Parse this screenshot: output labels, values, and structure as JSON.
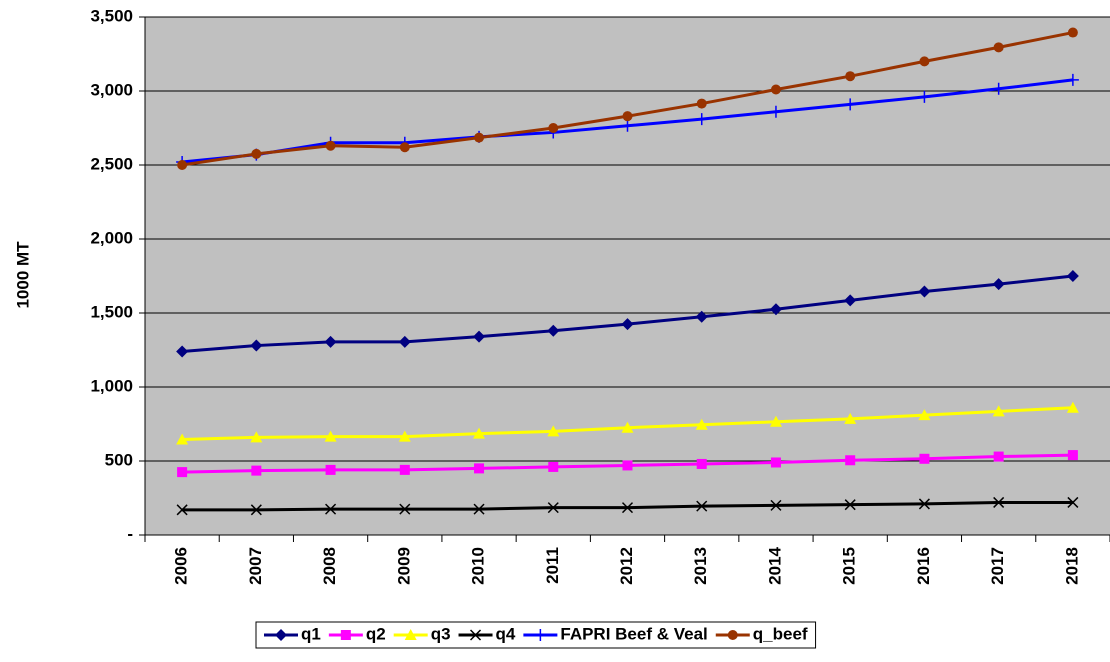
{
  "chart_data": {
    "type": "line",
    "y_label": "1000 MT",
    "categories": [
      "2006",
      "2007",
      "2008",
      "2009",
      "2010",
      "2011",
      "2012",
      "2013",
      "2014",
      "2015",
      "2016",
      "2017",
      "2018"
    ],
    "ylim": [
      0,
      3500
    ],
    "yticks": [
      {
        "value": 0,
        "label": "-"
      },
      500,
      {
        "value": 1000,
        "label": "1,000"
      },
      {
        "value": 1500,
        "label": "1,500"
      },
      {
        "value": 2000,
        "label": "2,000"
      },
      {
        "value": 2500,
        "label": "2,500"
      },
      {
        "value": 3000,
        "label": "3,000"
      },
      {
        "value": 3500,
        "label": "3,500"
      }
    ],
    "grid": true,
    "background": "#c0c0c0",
    "legend": "bottom",
    "series": [
      {
        "name": "q1",
        "color": "#000080",
        "marker": "diamond",
        "values": [
          1240,
          1280,
          1305,
          1305,
          1340,
          1380,
          1425,
          1475,
          1525,
          1585,
          1645,
          1695,
          1750
        ]
      },
      {
        "name": "q2",
        "color": "#ff00ff",
        "marker": "square",
        "values": [
          425,
          435,
          440,
          440,
          450,
          460,
          470,
          480,
          490,
          505,
          515,
          530,
          540
        ]
      },
      {
        "name": "q3",
        "color": "#ffff00",
        "marker": "triangle",
        "values": [
          645,
          660,
          665,
          665,
          685,
          700,
          725,
          745,
          765,
          785,
          810,
          835,
          860
        ]
      },
      {
        "name": "q4",
        "color": "#000000",
        "marker": "x",
        "values": [
          170,
          170,
          175,
          175,
          175,
          185,
          185,
          195,
          200,
          205,
          210,
          220,
          220
        ]
      },
      {
        "name": "FAPRI Beef & Veal",
        "color": "#0000ff",
        "marker": "plus",
        "values": [
          2520,
          2570,
          2650,
          2650,
          2690,
          2720,
          2765,
          2810,
          2860,
          2910,
          2960,
          3015,
          3075
        ]
      },
      {
        "name": "q_beef",
        "color": "#993300",
        "marker": "circle",
        "values": [
          2500,
          2575,
          2630,
          2620,
          2685,
          2750,
          2830,
          2915,
          3010,
          3100,
          3200,
          3295,
          3395
        ]
      }
    ]
  }
}
